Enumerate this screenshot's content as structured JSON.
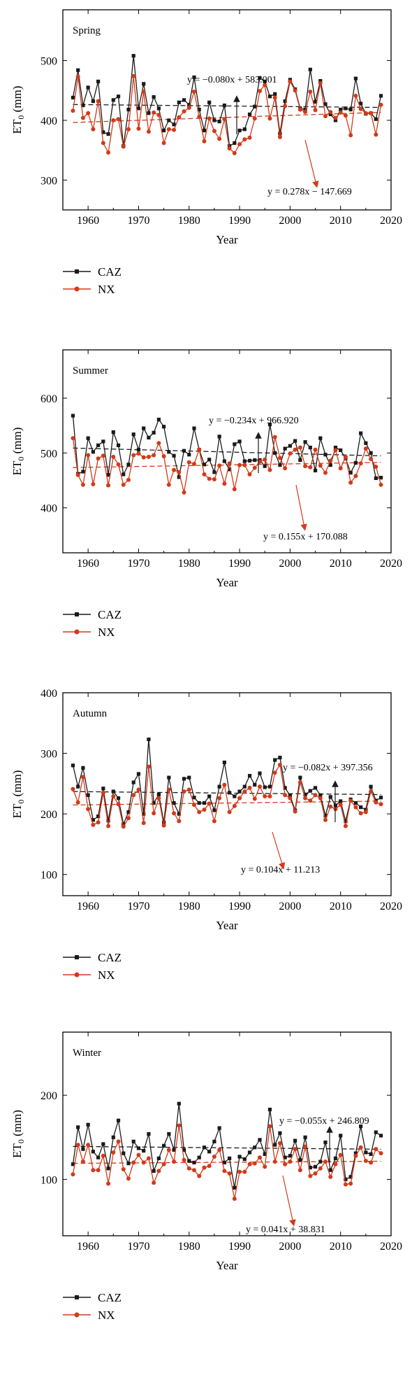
{
  "chart_data": [
    {
      "type": "line",
      "season_label": "Spring",
      "xlabel": "Year",
      "ylabel": "ET",
      "ylabel_sub": "0",
      "ylabel_unit": "(mm)",
      "xlim": [
        1955,
        2020
      ],
      "ylim": [
        250,
        585
      ],
      "xticks": [
        1960,
        1970,
        1980,
        1990,
        2000,
        2010,
        2020
      ],
      "yticks": [
        300,
        400,
        500
      ],
      "x": [
        1957,
        1958,
        1959,
        1960,
        1961,
        1962,
        1963,
        1964,
        1965,
        1966,
        1967,
        1968,
        1969,
        1970,
        1971,
        1972,
        1973,
        1974,
        1975,
        1976,
        1977,
        1978,
        1979,
        1980,
        1981,
        1982,
        1983,
        1984,
        1985,
        1986,
        1987,
        1988,
        1989,
        1990,
        1991,
        1992,
        1993,
        1994,
        1995,
        1996,
        1997,
        1998,
        1999,
        2000,
        2001,
        2002,
        2003,
        2004,
        2005,
        2006,
        2007,
        2008,
        2009,
        2010,
        2011,
        2012,
        2013,
        2014,
        2015,
        2016,
        2017,
        2018
      ],
      "series": [
        {
          "name": "CAZ",
          "color": "#1a1a1a",
          "marker": "square",
          "values": [
            438,
            484,
            425,
            455,
            432,
            465,
            380,
            377,
            434,
            440,
            357,
            418,
            508,
            420,
            461,
            412,
            439,
            420,
            383,
            400,
            393,
            430,
            434,
            426,
            472,
            418,
            383,
            430,
            400,
            398,
            425,
            357,
            362,
            383,
            385,
            410,
            423,
            471,
            465,
            440,
            444,
            378,
            432,
            468,
            452,
            420,
            418,
            485,
            431,
            466,
            427,
            410,
            400,
            418,
            420,
            418,
            470,
            428,
            411,
            412,
            402,
            441
          ]
        },
        {
          "name": "NX",
          "color": "#d23a1a",
          "marker": "circle",
          "values": [
            416,
            473,
            404,
            412,
            385,
            432,
            362,
            346,
            400,
            402,
            356,
            385,
            474,
            386,
            448,
            381,
            413,
            409,
            362,
            385,
            384,
            405,
            415,
            421,
            448,
            406,
            365,
            403,
            382,
            369,
            402,
            353,
            345,
            360,
            368,
            371,
            403,
            449,
            459,
            403,
            438,
            372,
            424,
            465,
            450,
            418,
            414,
            448,
            417,
            462,
            407,
            414,
            404,
            413,
            408,
            375,
            441,
            419,
            412,
            412,
            376,
            426
          ]
        }
      ],
      "trends": [
        {
          "series": "CAZ",
          "equation": "y = −0.080x + 583.001",
          "slope": -0.08,
          "intercept": 583.001,
          "color": "#1a1a1a"
        },
        {
          "series": "NX",
          "equation": "y = 0.278x − 147.669",
          "slope": 0.278,
          "intercept": -147.669,
          "color": "#d23a1a"
        }
      ],
      "legend": [
        {
          "name": "CAZ",
          "color": "#1a1a1a",
          "marker": "square"
        },
        {
          "name": "NX",
          "color": "#d23a1a",
          "marker": "circle"
        }
      ]
    },
    {
      "type": "line",
      "season_label": "Summer",
      "xlabel": "Year",
      "ylabel": "ET",
      "ylabel_sub": "0",
      "ylabel_unit": "(mm)",
      "xlim": [
        1955,
        2020
      ],
      "ylim": [
        318,
        688
      ],
      "xticks": [
        1960,
        1970,
        1980,
        1990,
        2000,
        2010,
        2020
      ],
      "yticks": [
        400,
        500,
        600
      ],
      "x": [
        1957,
        1958,
        1959,
        1960,
        1961,
        1962,
        1963,
        1964,
        1965,
        1966,
        1967,
        1968,
        1969,
        1970,
        1971,
        1972,
        1973,
        1974,
        1975,
        1976,
        1977,
        1978,
        1979,
        1980,
        1981,
        1982,
        1983,
        1984,
        1985,
        1986,
        1987,
        1988,
        1989,
        1990,
        1991,
        1992,
        1993,
        1994,
        1995,
        1996,
        1997,
        1998,
        1999,
        2000,
        2001,
        2002,
        2003,
        2004,
        2005,
        2006,
        2007,
        2008,
        2009,
        2010,
        2011,
        2012,
        2013,
        2014,
        2015,
        2016,
        2017,
        2018
      ],
      "series": [
        {
          "name": "CAZ",
          "color": "#1a1a1a",
          "marker": "square",
          "values": [
            568,
            462,
            466,
            527,
            502,
            514,
            521,
            460,
            538,
            514,
            461,
            479,
            534,
            506,
            545,
            528,
            537,
            561,
            548,
            502,
            495,
            456,
            504,
            497,
            545,
            506,
            479,
            488,
            465,
            530,
            485,
            470,
            516,
            521,
            485,
            486,
            487,
            487,
            476,
            552,
            500,
            478,
            508,
            513,
            522,
            487,
            520,
            510,
            468,
            527,
            497,
            478,
            510,
            505,
            490,
            464,
            482,
            536,
            518,
            500,
            454,
            455
          ]
        },
        {
          "name": "NX",
          "color": "#d23a1a",
          "marker": "circle",
          "values": [
            527,
            460,
            442,
            496,
            443,
            490,
            495,
            441,
            493,
            479,
            442,
            451,
            496,
            499,
            492,
            493,
            496,
            518,
            494,
            442,
            469,
            465,
            428,
            483,
            480,
            506,
            461,
            453,
            452,
            477,
            444,
            481,
            434,
            478,
            478,
            461,
            473,
            484,
            488,
            469,
            529,
            491,
            472,
            499,
            506,
            510,
            476,
            474,
            506,
            477,
            464,
            486,
            505,
            472,
            493,
            446,
            458,
            481,
            508,
            489,
            475,
            442
          ]
        }
      ],
      "trends": [
        {
          "series": "CAZ",
          "equation": "y = −0.234x + 966.920",
          "slope": -0.234,
          "intercept": 966.92,
          "color": "#1a1a1a"
        },
        {
          "series": "NX",
          "equation": "y = 0.155x + 170.088",
          "slope": 0.155,
          "intercept": 170.088,
          "color": "#d23a1a"
        }
      ],
      "legend": [
        {
          "name": "CAZ",
          "color": "#1a1a1a",
          "marker": "square"
        },
        {
          "name": "NX",
          "color": "#d23a1a",
          "marker": "circle"
        }
      ]
    },
    {
      "type": "line",
      "season_label": "Autumn",
      "xlabel": "Year",
      "ylabel": "ET",
      "ylabel_sub": "0",
      "ylabel_unit": "(mm)",
      "xlim": [
        1955,
        2020
      ],
      "ylim": [
        65,
        400
      ],
      "xticks": [
        1960,
        1970,
        1980,
        1990,
        2000,
        2010,
        2020
      ],
      "yticks": [
        100,
        200,
        300,
        400
      ],
      "x": [
        1957,
        1958,
        1959,
        1960,
        1961,
        1962,
        1963,
        1964,
        1965,
        1966,
        1967,
        1968,
        1969,
        1970,
        1971,
        1972,
        1973,
        1974,
        1975,
        1976,
        1977,
        1978,
        1979,
        1980,
        1981,
        1982,
        1983,
        1984,
        1985,
        1986,
        1987,
        1988,
        1989,
        1990,
        1991,
        1992,
        1993,
        1994,
        1995,
        1996,
        1997,
        1998,
        1999,
        2000,
        2001,
        2002,
        2003,
        2004,
        2005,
        2006,
        2007,
        2008,
        2009,
        2010,
        2011,
        2012,
        2013,
        2014,
        2015,
        2016,
        2017,
        2018
      ],
      "series": [
        {
          "name": "CAZ",
          "color": "#1a1a1a",
          "marker": "square",
          "values": [
            280,
            245,
            276,
            231,
            190,
            196,
            242,
            189,
            237,
            226,
            183,
            203,
            252,
            266,
            200,
            323,
            218,
            232,
            186,
            260,
            218,
            200,
            258,
            260,
            227,
            218,
            218,
            229,
            206,
            245,
            285,
            235,
            229,
            237,
            245,
            263,
            248,
            267,
            244,
            245,
            289,
            293,
            243,
            230,
            206,
            260,
            232,
            238,
            243,
            231,
            197,
            228,
            214,
            221,
            188,
            224,
            218,
            211,
            207,
            245,
            222,
            227
          ]
        },
        {
          "name": "NX",
          "color": "#d23a1a",
          "marker": "circle",
          "values": [
            241,
            219,
            261,
            208,
            182,
            186,
            235,
            180,
            229,
            216,
            179,
            193,
            231,
            240,
            185,
            278,
            201,
            226,
            181,
            240,
            201,
            188,
            237,
            240,
            215,
            203,
            207,
            217,
            188,
            226,
            248,
            203,
            213,
            226,
            237,
            243,
            225,
            245,
            229,
            229,
            268,
            281,
            231,
            226,
            204,
            252,
            226,
            222,
            231,
            226,
            190,
            212,
            208,
            215,
            180,
            222,
            211,
            201,
            203,
            237,
            219,
            216
          ]
        }
      ],
      "trends": [
        {
          "series": "CAZ",
          "equation": "y = −0.082x + 397.356",
          "slope": -0.082,
          "intercept": 397.356,
          "color": "#1a1a1a"
        },
        {
          "series": "NX",
          "equation": "y = 0.104x + 11.213",
          "slope": 0.104,
          "intercept": 11.213,
          "color": "#d23a1a"
        }
      ],
      "legend": [
        {
          "name": "CAZ",
          "color": "#1a1a1a",
          "marker": "square"
        },
        {
          "name": "NX",
          "color": "#d23a1a",
          "marker": "circle"
        }
      ]
    },
    {
      "type": "line",
      "season_label": "Winter",
      "xlabel": "Year",
      "ylabel": "ET",
      "ylabel_sub": "0",
      "ylabel_unit": "(mm)",
      "xlim": [
        1955,
        2020
      ],
      "ylim": [
        33,
        275
      ],
      "xticks": [
        1960,
        1970,
        1980,
        1990,
        2000,
        2010,
        2020
      ],
      "yticks": [
        100,
        200
      ],
      "x": [
        1957,
        1958,
        1959,
        1960,
        1961,
        1962,
        1963,
        1964,
        1965,
        1966,
        1967,
        1968,
        1969,
        1970,
        1971,
        1972,
        1973,
        1974,
        1975,
        1976,
        1977,
        1978,
        1979,
        1980,
        1981,
        1982,
        1983,
        1984,
        1985,
        1986,
        1987,
        1988,
        1989,
        1990,
        1991,
        1992,
        1993,
        1994,
        1995,
        1996,
        1997,
        1998,
        1999,
        2000,
        2001,
        2002,
        2003,
        2004,
        2005,
        2006,
        2007,
        2008,
        2009,
        2010,
        2011,
        2012,
        2013,
        2014,
        2015,
        2016,
        2017,
        2018
      ],
      "series": [
        {
          "name": "CAZ",
          "color": "#1a1a1a",
          "marker": "square",
          "values": [
            118,
            162,
            136,
            165,
            133,
            126,
            142,
            113,
            150,
            170,
            131,
            119,
            145,
            137,
            134,
            154,
            110,
            125,
            140,
            154,
            135,
            190,
            135,
            122,
            120,
            126,
            138,
            133,
            145,
            161,
            120,
            125,
            90,
            127,
            124,
            132,
            138,
            147,
            130,
            183,
            141,
            155,
            126,
            128,
            146,
            123,
            150,
            114,
            115,
            121,
            144,
            111,
            125,
            152,
            100,
            103,
            131,
            163,
            132,
            130,
            156,
            152
          ]
        },
        {
          "name": "NX",
          "color": "#d23a1a",
          "marker": "circle",
          "values": [
            106,
            141,
            121,
            141,
            111,
            111,
            128,
            95,
            132,
            145,
            112,
            101,
            120,
            129,
            120,
            125,
            96,
            110,
            118,
            135,
            121,
            164,
            123,
            113,
            111,
            104,
            114,
            116,
            127,
            135,
            110,
            107,
            77,
            109,
            109,
            118,
            119,
            126,
            115,
            163,
            121,
            143,
            118,
            121,
            136,
            111,
            139,
            104,
            107,
            113,
            121,
            103,
            118,
            129,
            94,
            95,
            128,
            138,
            122,
            120,
            136,
            131
          ]
        }
      ],
      "trends": [
        {
          "series": "CAZ",
          "equation": "y = −0.055x + 246.809",
          "slope": -0.055,
          "intercept": 246.809,
          "color": "#1a1a1a"
        },
        {
          "series": "NX",
          "equation": "y = 0.041x + 38.831",
          "slope": 0.041,
          "intercept": 38.831,
          "color": "#d23a1a"
        }
      ],
      "legend": [
        {
          "name": "CAZ",
          "color": "#1a1a1a",
          "marker": "square"
        },
        {
          "name": "NX",
          "color": "#d23a1a",
          "marker": "circle"
        }
      ]
    }
  ]
}
